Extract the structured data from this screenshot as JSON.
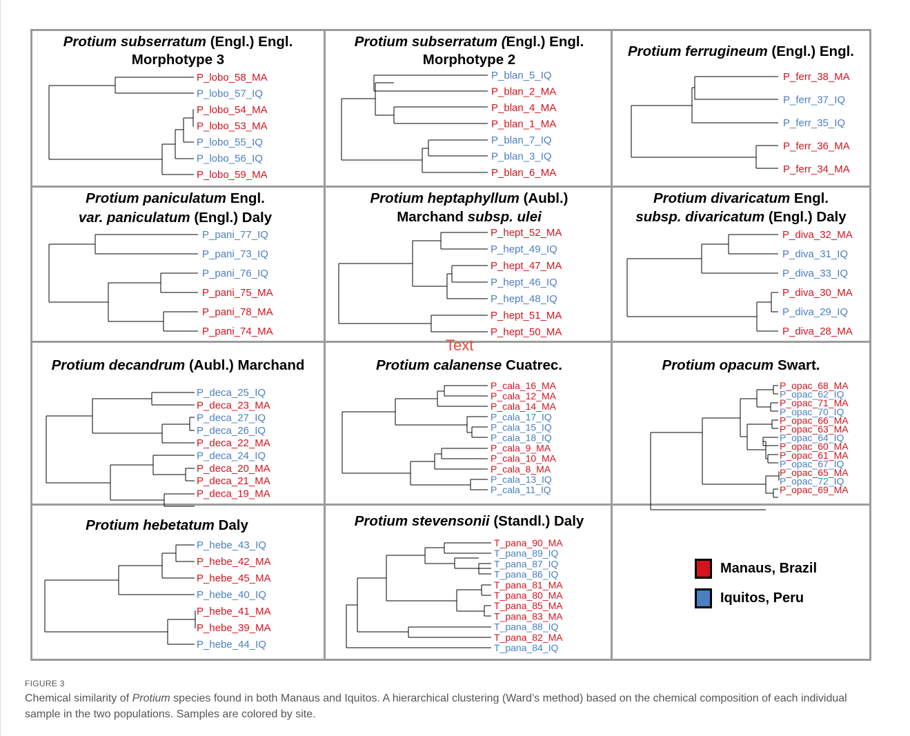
{
  "colors": {
    "manaus": "#d3141e",
    "iquitos": "#4a7fc1",
    "frame": "#9b9b9b"
  },
  "panels": [
    {
      "title_a": "Protium subserratum",
      "title_b": " (Engl.) Engl.",
      "title_2": "Morphotype 3",
      "leaves": [
        {
          "label": "P_lobo_58_MA",
          "site": "MA"
        },
        {
          "label": "P_lobo_57_IQ",
          "site": "IQ"
        },
        {
          "label": "P_lobo_54_MA",
          "site": "MA"
        },
        {
          "label": "P_lobo_53_MA",
          "site": "MA"
        },
        {
          "label": "P_lobo_55_IQ",
          "site": "IQ"
        },
        {
          "label": "P_lobo_56_IQ",
          "site": "IQ"
        },
        {
          "label": "P_lobo_59_MA",
          "site": "MA"
        }
      ]
    },
    {
      "title_a": "Protium subserratum (",
      "title_b": "Engl.) Engl.",
      "title_2": "Morphotype 2",
      "leaves": [
        {
          "label": "P_blan_5_IQ",
          "site": "IQ"
        },
        {
          "label": "P_blan_2_MA",
          "site": "MA"
        },
        {
          "label": "P_blan_4_MA",
          "site": "MA"
        },
        {
          "label": "P_blan_1_MA",
          "site": "MA"
        },
        {
          "label": "P_blan_7_IQ",
          "site": "IQ"
        },
        {
          "label": "P_blan_3_IQ",
          "site": "IQ"
        },
        {
          "label": "P_blan_6_MA",
          "site": "MA"
        }
      ]
    },
    {
      "title_a": "Protium ferrugineum",
      "title_b": " (Engl.) Engl.",
      "title_2": "",
      "leaves": [
        {
          "label": "P_ferr_38_MA",
          "site": "MA"
        },
        {
          "label": "P_ferr_37_IQ",
          "site": "IQ"
        },
        {
          "label": "P_ferr_35_IQ",
          "site": "IQ"
        },
        {
          "label": "P_ferr_36_MA",
          "site": "MA"
        },
        {
          "label": "P_ferr_34_MA",
          "site": "MA"
        }
      ]
    },
    {
      "title_a": "Protium paniculatum",
      "title_b": " Engl.",
      "title_2a": "var. paniculatum",
      "title_2b": " (Engl.) Daly",
      "leaves": [
        {
          "label": "P_pani_77_IQ",
          "site": "IQ"
        },
        {
          "label": "P_pani_73_IQ",
          "site": "IQ"
        },
        {
          "label": "P_pani_76_IQ",
          "site": "IQ"
        },
        {
          "label": "P_pani_75_MA",
          "site": "MA"
        },
        {
          "label": "P_pani_78_MA",
          "site": "MA"
        },
        {
          "label": "P_pani_74_MA",
          "site": "MA"
        }
      ]
    },
    {
      "title_a": "Protium heptaphyllum",
      "title_b": " (Aubl.)",
      "title_2a": "Marchand ",
      "title_2b": "subsp. ulei",
      "leaves": [
        {
          "label": "P_hept_52_MA",
          "site": "MA"
        },
        {
          "label": "P_hept_49_IQ",
          "site": "IQ"
        },
        {
          "label": "P_hept_47_MA",
          "site": "MA"
        },
        {
          "label": "P_hept_46_IQ",
          "site": "IQ"
        },
        {
          "label": "P_hept_48_IQ",
          "site": "IQ"
        },
        {
          "label": "P_hept_51_MA",
          "site": "MA"
        },
        {
          "label": "P_hept_50_MA",
          "site": "MA"
        }
      ]
    },
    {
      "title_a": "Protium divaricatum",
      "title_b": "  Engl.",
      "title_2a": "subsp. divaricatum",
      "title_2b": " (Engl.) Daly",
      "leaves": [
        {
          "label": "P_diva_32_MA",
          "site": "MA"
        },
        {
          "label": "P_diva_31_IQ",
          "site": "IQ"
        },
        {
          "label": "P_diva_33_IQ",
          "site": "IQ"
        },
        {
          "label": "P_diva_30_MA",
          "site": "MA"
        },
        {
          "label": "P_diva_29_IQ",
          "site": "IQ"
        },
        {
          "label": "P_diva_28_MA",
          "site": "MA"
        }
      ]
    },
    {
      "title_a": "Protium decandrum",
      "title_b": " (Aubl.) Marchand",
      "title_2": "",
      "leaves": [
        {
          "label": "P_deca_25_IQ",
          "site": "IQ"
        },
        {
          "label": "P_deca_23_MA",
          "site": "MA"
        },
        {
          "label": "P_deca_27_IQ",
          "site": "IQ"
        },
        {
          "label": "P_deca_26_IQ",
          "site": "IQ"
        },
        {
          "label": "P_deca_22_MA",
          "site": "MA"
        },
        {
          "label": "P_deca_24_IQ",
          "site": "IQ"
        },
        {
          "label": "P_deca_20_MA",
          "site": "MA"
        },
        {
          "label": "P_deca_21_MA",
          "site": "MA"
        },
        {
          "label": "P_deca_19_MA",
          "site": "MA"
        }
      ]
    },
    {
      "title_a": "Protium calanense",
      "title_b": " Cuatrec.",
      "title_2": "",
      "leaves": [
        {
          "label": "P_cala_16_MA",
          "site": "MA"
        },
        {
          "label": "P_cala_12_MA",
          "site": "MA"
        },
        {
          "label": "P_cala_14_MA",
          "site": "MA"
        },
        {
          "label": "P_cala_17_IQ",
          "site": "IQ"
        },
        {
          "label": "P_cala_15_IQ",
          "site": "IQ"
        },
        {
          "label": "P_cala_18_IQ",
          "site": "IQ"
        },
        {
          "label": "P_cala_9_MA",
          "site": "MA"
        },
        {
          "label": "P_cala_10_MA",
          "site": "MA"
        },
        {
          "label": "P_cala_8_MA",
          "site": "MA"
        },
        {
          "label": "P_cala_13_IQ",
          "site": "IQ"
        },
        {
          "label": "P_cala_11_IQ",
          "site": "IQ"
        }
      ]
    },
    {
      "title_a": "Protium opacum",
      "title_b": " Swart.",
      "title_2": "",
      "leaves": [
        {
          "label": "P_opac_68_MA",
          "site": "MA"
        },
        {
          "label": "P_opac_62_IQ",
          "site": "IQ"
        },
        {
          "label": "P_opac_71_MA",
          "site": "MA"
        },
        {
          "label": "P_opac_70_IQ",
          "site": "IQ"
        },
        {
          "label": "P_opac_66_MA",
          "site": "MA"
        },
        {
          "label": "P_opac_63_MA",
          "site": "MA"
        },
        {
          "label": "P_opac_64_IQ",
          "site": "IQ"
        },
        {
          "label": "P_opac_60_MA",
          "site": "MA"
        },
        {
          "label": "P_opac_61_MA",
          "site": "MA"
        },
        {
          "label": "P_opac_67_IQ",
          "site": "IQ"
        },
        {
          "label": "P_opac_65_MA",
          "site": "MA"
        },
        {
          "label": "P_opac_72_IQ",
          "site": "IQ"
        },
        {
          "label": "P_opac_69_MA",
          "site": "MA"
        }
      ]
    },
    {
      "title_a": "Protium hebetatum",
      "title_b": " Daly",
      "title_2": "",
      "leaves": [
        {
          "label": "P_hebe_43_IQ",
          "site": "IQ"
        },
        {
          "label": "P_hebe_42_MA",
          "site": "MA"
        },
        {
          "label": "P_hebe_45_MA",
          "site": "MA"
        },
        {
          "label": "P_hebe_40_IQ",
          "site": "IQ"
        },
        {
          "label": "P_hebe_41_MA",
          "site": "MA"
        },
        {
          "label": "P_hebe_39_MA",
          "site": "MA"
        },
        {
          "label": "P_hebe_44_IQ",
          "site": "IQ"
        }
      ]
    },
    {
      "title_a": "Protium stevensonii",
      "title_b": " (Standl.) Daly",
      "title_2": "",
      "leaves": [
        {
          "label": "T_pana_90_MA",
          "site": "MA"
        },
        {
          "label": "T_pana_89_IQ",
          "site": "IQ"
        },
        {
          "label": "T_pana_87_IQ",
          "site": "IQ"
        },
        {
          "label": "T_pana_86_IQ",
          "site": "IQ"
        },
        {
          "label": "T_pana_81_MA",
          "site": "MA"
        },
        {
          "label": "T_pana_80_MA",
          "site": "MA"
        },
        {
          "label": "T_pana_85_MA",
          "site": "MA"
        },
        {
          "label": "T_pana_83_MA",
          "site": "MA"
        },
        {
          "label": "T_pana_88_IQ",
          "site": "IQ"
        },
        {
          "label": "T_pana_82_MA",
          "site": "MA"
        },
        {
          "label": "T_pana_84_IQ",
          "site": "IQ"
        }
      ]
    }
  ],
  "legend": {
    "items": [
      {
        "label": "Manaus, Brazil",
        "color": "#d3141e"
      },
      {
        "label": "Iquitos, Peru",
        "color": "#4a7fc1"
      }
    ]
  },
  "stray_text": "Text",
  "figure_label": "FIGURE 3",
  "caption": {
    "part1": "Chemical similarity of ",
    "genus": "Protium",
    "part2": " species found in both Manaus and Iquitos. A hierarchical clustering (Ward’s method) based on the chemical composition of each individual sample in the two populations. Samples are colored by site."
  }
}
